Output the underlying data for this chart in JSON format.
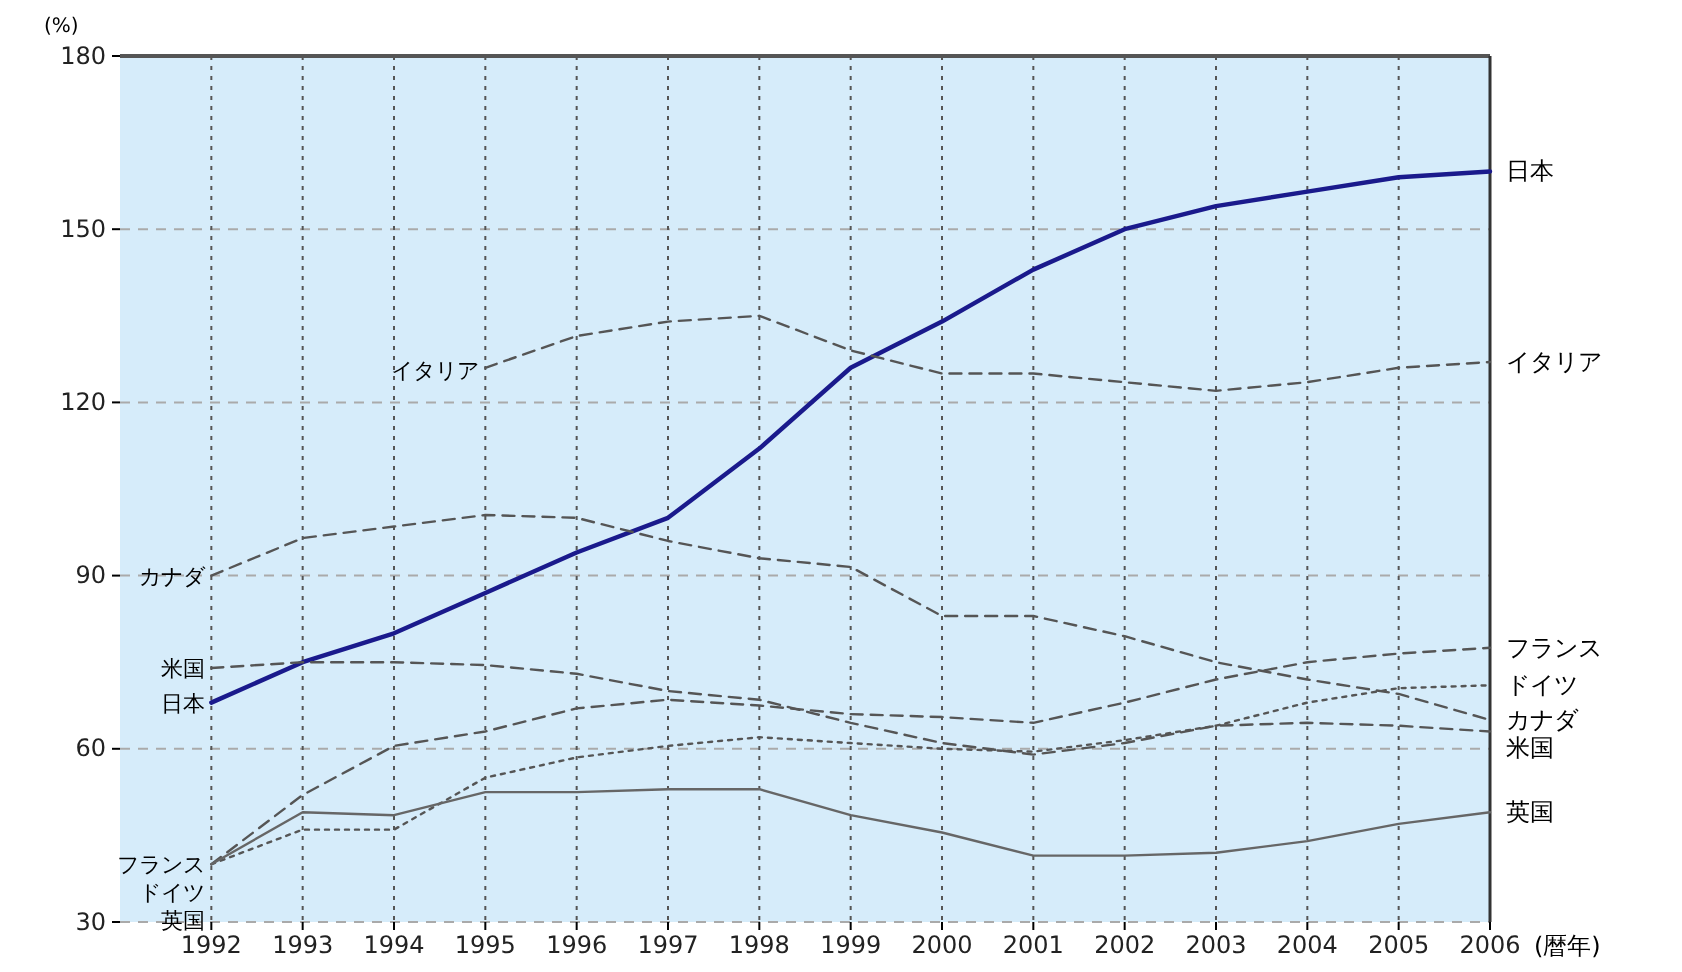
{
  "chart_data": {
    "type": "line",
    "ylabel": "(%)",
    "xlabel": "(暦年)",
    "x": [
      1992,
      1993,
      1994,
      1995,
      1996,
      1997,
      1998,
      1999,
      2000,
      2001,
      2002,
      2003,
      2004,
      2005,
      2006
    ],
    "xlim": [
      1991,
      2006
    ],
    "xticks": [
      1992,
      1993,
      1994,
      1995,
      1996,
      1997,
      1998,
      1999,
      2000,
      2001,
      2002,
      2003,
      2004,
      2005,
      2006
    ],
    "ylim": [
      30,
      180
    ],
    "yticks": [
      30,
      60,
      90,
      120,
      150,
      180
    ],
    "grid": true,
    "marker": "none",
    "series": [
      {
        "name": "日本",
        "color": "#1a1a8c",
        "line_style": "solid",
        "values": [
          68,
          75,
          80,
          87,
          94,
          100,
          112,
          126,
          134,
          143,
          150,
          154,
          156.5,
          159,
          160
        ]
      },
      {
        "name": "イタリア",
        "color": "#555555",
        "line_style": "dashed",
        "values": [
          null,
          null,
          null,
          126,
          131.5,
          134,
          135,
          129,
          125,
          125,
          123.5,
          122,
          123.5,
          126,
          127
        ]
      },
      {
        "name": "カナダ",
        "color": "#555555",
        "line_style": "dashed",
        "values": [
          90,
          96.5,
          98.5,
          100.5,
          100,
          96,
          93,
          91.5,
          83,
          83,
          79.5,
          75,
          72,
          69.5,
          65
        ]
      },
      {
        "name": "米国",
        "color": "#555555",
        "line_style": "dashed",
        "values": [
          74,
          75,
          75,
          74.5,
          73,
          70,
          68.5,
          64.5,
          61,
          59,
          61,
          64,
          64.5,
          64,
          63
        ]
      },
      {
        "name": "フランス",
        "color": "#555555",
        "line_style": "dashed",
        "values": [
          40,
          52,
          60.5,
          63,
          67,
          68.5,
          67.5,
          66,
          65.5,
          64.5,
          68,
          72,
          75,
          76.5,
          77.5
        ]
      },
      {
        "name": "ドイツ",
        "color": "#555555",
        "line_style": "dotted",
        "values": [
          40,
          46,
          46,
          55,
          58.5,
          60.5,
          62,
          61,
          60,
          59.5,
          61.5,
          64,
          68,
          70.5,
          71
        ]
      },
      {
        "name": "英国",
        "color": "#666666",
        "line_style": "solid",
        "values": [
          40,
          49,
          48.5,
          52.5,
          52.5,
          53,
          53,
          48.5,
          45.5,
          41.5,
          41.5,
          42,
          44,
          47,
          49
        ]
      }
    ]
  }
}
